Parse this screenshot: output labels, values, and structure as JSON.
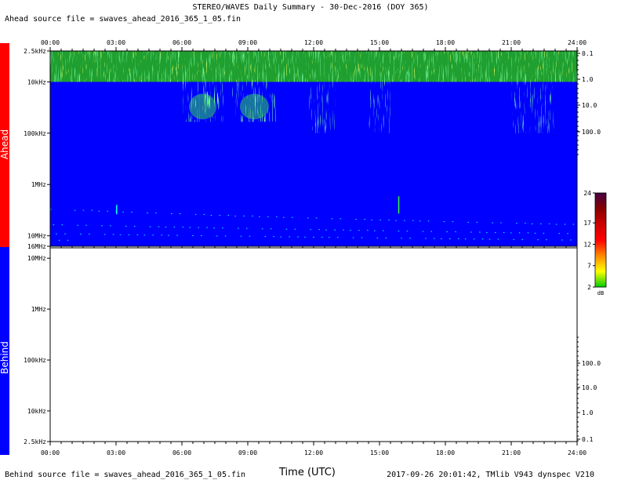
{
  "title": "STEREO/WAVES Daily Summary - 30-Dec-2016 (DOY 365)",
  "ahead_source": "Ahead source file = swaves_ahead_2016_365_1_05.fin",
  "behind_source": "Behind source file = swaves_ahead_2016_365_1_05.fin",
  "xlabel": "Time (UTC)",
  "footer_right": "2017-09-26 20:01:42, TMlib V943 dynspec V210",
  "colors": {
    "ahead_bar": "#ff0000",
    "behind_bar": "#0000ff",
    "spectrogram_background": "#0000ff",
    "burst_green": "#33ff33",
    "burst_yellow": "#ffff00",
    "burst_cyan": "#00ffff"
  },
  "chart_data": [
    {
      "type": "heatmap",
      "panel": "Ahead",
      "side_label": "Ahead",
      "x_ticks": [
        "00:00",
        "03:00",
        "06:00",
        "09:00",
        "12:00",
        "15:00",
        "18:00",
        "21:00",
        "24:00"
      ],
      "xlim_hours": [
        0,
        24
      ],
      "y_left_ticks": [
        "2.5kHz",
        "10kHz",
        "100kHz",
        "1MHz",
        "10MHz",
        "16MHz"
      ],
      "y_right_ticks": [
        "0.1",
        "1.0",
        "10.0",
        "100.0"
      ],
      "colorbar": {
        "label": "dB",
        "ticks": [
          "24",
          "17",
          "12",
          "7",
          "2"
        ],
        "range": [
          2,
          24
        ],
        "colors": [
          "#00cc00",
          "#ffff00",
          "#ff8800",
          "#ff0000",
          "#cc0000",
          "#880000",
          "#440044"
        ]
      },
      "bursts": [
        {
          "start": 6.0,
          "end": 7.9,
          "f_low_khz": 60,
          "intensity": "high"
        },
        {
          "start": 8.3,
          "end": 10.3,
          "f_low_khz": 60,
          "intensity": "high"
        },
        {
          "start": 11.8,
          "end": 13.0,
          "f_low_khz": 100,
          "intensity": "medium"
        },
        {
          "start": 14.5,
          "end": 15.5,
          "f_low_khz": 100,
          "intensity": "medium"
        },
        {
          "start": 21.0,
          "end": 23.0,
          "f_low_khz": 100,
          "intensity": "medium"
        }
      ]
    },
    {
      "type": "heatmap",
      "panel": "Behind",
      "side_label": "Behind",
      "x_ticks": [
        "00:00",
        "03:00",
        "06:00",
        "09:00",
        "12:00",
        "15:00",
        "18:00",
        "21:00",
        "24:00"
      ],
      "xlim_hours": [
        0,
        24
      ],
      "y_left_ticks": [
        "10MHz",
        "1MHz",
        "100kHz",
        "10kHz",
        "2.5kHz"
      ],
      "y_right_ticks": [
        "100.0",
        "10.0",
        "1.0",
        "0.1"
      ],
      "values": "no data (blank)"
    }
  ]
}
